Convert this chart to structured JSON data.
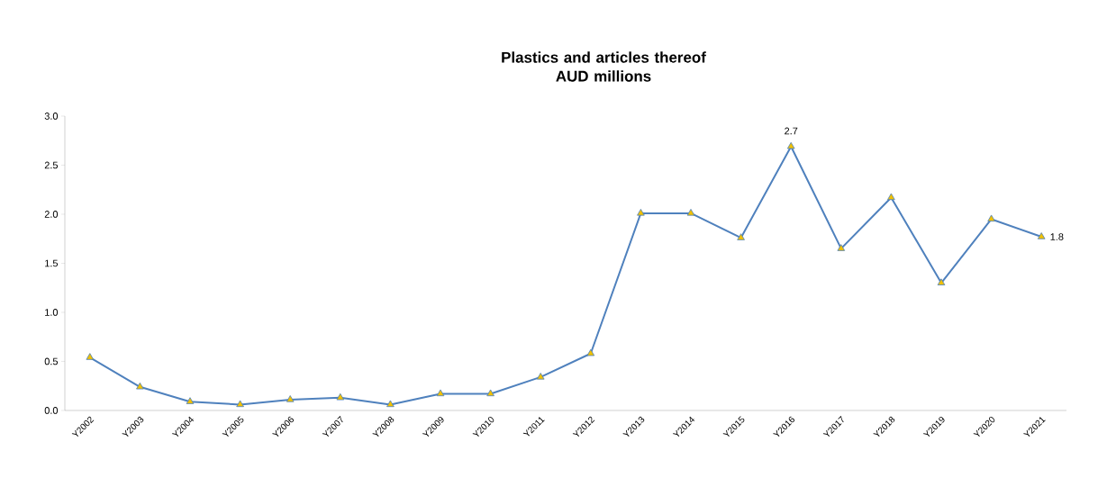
{
  "chart_data": {
    "type": "line",
    "title": "Plastics and articles thereof\nAUD millions",
    "categories": [
      "Y2002",
      "Y2003",
      "Y2004",
      "Y2005",
      "Y2006",
      "Y2007",
      "Y2008",
      "Y2009",
      "Y2010",
      "Y2011",
      "Y2012",
      "Y2013",
      "Y2014",
      "Y2015",
      "Y2016",
      "Y2017",
      "Y2018",
      "Y2019",
      "Y2020",
      "Y2021"
    ],
    "series": [
      {
        "color": "#4f81bd",
        "values": [
          0.54,
          0.24,
          0.09,
          0.06,
          0.11,
          0.13,
          0.06,
          0.17,
          0.17,
          0.34,
          0.58,
          2.01,
          2.01,
          1.76,
          2.69,
          1.65,
          2.17,
          1.3,
          1.95,
          1.77
        ],
        "value_labels": [
          null,
          null,
          null,
          null,
          null,
          null,
          null,
          null,
          null,
          null,
          null,
          null,
          null,
          null,
          "2.7",
          null,
          null,
          null,
          null,
          "1.8"
        ]
      }
    ],
    "ylim": [
      0,
      3
    ],
    "yticks": [
      {
        "value": 0,
        "label": "0.0"
      },
      {
        "value": 0.5,
        "label": "0.5"
      },
      {
        "value": 1,
        "label": "1.0"
      },
      {
        "value": 1.5,
        "label": "1.5"
      },
      {
        "value": 2,
        "label": "2.0"
      },
      {
        "value": 2.5,
        "label": "2.5"
      },
      {
        "value": 3,
        "label": "3.0"
      }
    ],
    "marker": "triangle",
    "line_style": "solid",
    "grid": false
  }
}
